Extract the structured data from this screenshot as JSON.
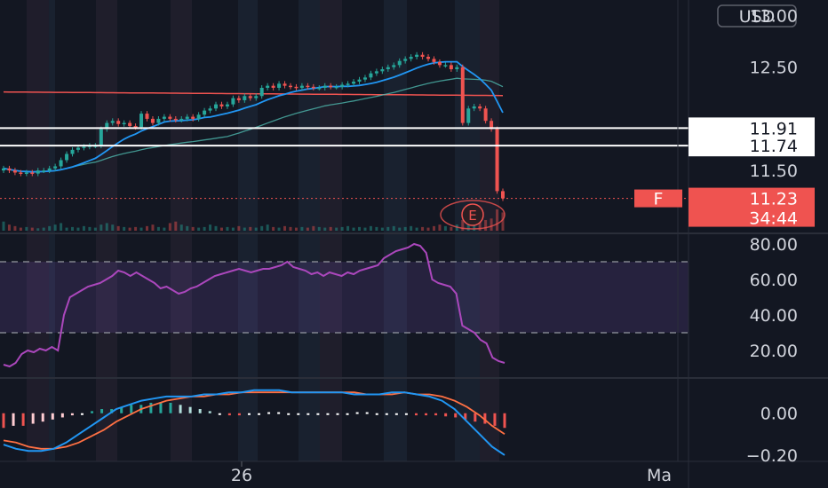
{
  "currency": "USD",
  "chart_data": [
    {
      "type": "candlestick",
      "ylim": [
        10.9,
        13.15
      ],
      "yticks": [
        "13.00",
        "12.50",
        "11.50"
      ],
      "markers": [
        {
          "label": "11.91",
          "value": 11.91,
          "style": "white-box"
        },
        {
          "label": "11.74",
          "value": 11.74,
          "style": "white-box"
        }
      ],
      "last_price": {
        "label": "11.23",
        "value": 11.23,
        "symbol": "F",
        "countdown": "34:44"
      },
      "earnings_marker": "E",
      "close": [
        11.52,
        11.5,
        11.48,
        11.47,
        11.48,
        11.47,
        11.5,
        11.5,
        11.52,
        11.54,
        11.6,
        11.66,
        11.7,
        11.72,
        11.73,
        11.74,
        11.74,
        11.9,
        11.96,
        11.98,
        11.95,
        11.96,
        11.93,
        11.92,
        12.05,
        12.0,
        11.96,
        12.0,
        12.02,
        12.0,
        11.99,
        12.0,
        12.02,
        12.0,
        12.04,
        12.08,
        12.1,
        12.14,
        12.12,
        12.14,
        12.2,
        12.18,
        12.22,
        12.2,
        12.22,
        12.3,
        12.32,
        12.3,
        12.34,
        12.32,
        12.31,
        12.3,
        12.32,
        12.31,
        12.3,
        12.3,
        12.32,
        12.31,
        12.31,
        12.33,
        12.34,
        12.36,
        12.38,
        12.4,
        12.44,
        12.46,
        12.48,
        12.5,
        12.52,
        12.56,
        12.58,
        12.6,
        12.62,
        12.6,
        12.58,
        12.55,
        12.52,
        12.52,
        12.48,
        12.5,
        11.96,
        12.1,
        12.12,
        12.1,
        11.98,
        11.9,
        11.3,
        11.23
      ],
      "volume": [
        0.3,
        0.2,
        0.15,
        0.1,
        0.12,
        0.1,
        0.08,
        0.1,
        0.15,
        0.2,
        0.25,
        0.1,
        0.12,
        0.1,
        0.15,
        0.12,
        0.1,
        0.2,
        0.25,
        0.2,
        0.15,
        0.12,
        0.1,
        0.12,
        0.1,
        0.15,
        0.2,
        0.12,
        0.1,
        0.25,
        0.3,
        0.2,
        0.15,
        0.12,
        0.1,
        0.12,
        0.2,
        0.15,
        0.1,
        0.12,
        0.1,
        0.15,
        0.1,
        0.12,
        0.1,
        0.15,
        0.2,
        0.12,
        0.1,
        0.15,
        0.12,
        0.1,
        0.12,
        0.1,
        0.15,
        0.12,
        0.1,
        0.12,
        0.1,
        0.12,
        0.15,
        0.1,
        0.12,
        0.1,
        0.15,
        0.12,
        0.1,
        0.12,
        0.15,
        0.1,
        0.12,
        0.15,
        0.1,
        0.12,
        0.1,
        0.15,
        0.2,
        0.15,
        0.12,
        0.2,
        0.35,
        0.3,
        0.25,
        0.3,
        0.35,
        0.4,
        0.7,
        0.6
      ]
    },
    {
      "type": "line",
      "name": "RSI",
      "ylim": [
        5,
        85
      ],
      "yticks": [
        "80.00",
        "60.00",
        "40.00",
        "20.00"
      ],
      "band": [
        30,
        70
      ],
      "values": [
        12,
        11,
        13,
        18,
        20,
        19,
        21,
        20,
        22,
        20,
        40,
        50,
        52,
        54,
        56,
        57,
        58,
        60,
        62,
        65,
        64,
        62,
        64,
        62,
        60,
        58,
        55,
        56,
        54,
        52,
        53,
        55,
        56,
        58,
        60,
        62,
        63,
        64,
        65,
        66,
        65,
        64,
        65,
        66,
        66,
        67,
        68,
        70,
        67,
        66,
        65,
        63,
        64,
        62,
        64,
        63,
        62,
        64,
        63,
        65,
        66,
        67,
        68,
        72,
        74,
        76,
        77,
        78,
        80,
        79,
        75,
        60,
        58,
        57,
        56,
        52,
        34,
        32,
        30,
        26,
        24,
        16,
        14,
        13
      ]
    },
    {
      "type": "macd",
      "ylim": [
        -0.23,
        0.16
      ],
      "yticks": [
        "0.00",
        "−0.20"
      ],
      "macd": [
        -0.15,
        -0.17,
        -0.18,
        -0.18,
        -0.17,
        -0.14,
        -0.1,
        -0.06,
        -0.02,
        0.02,
        0.04,
        0.06,
        0.07,
        0.08,
        0.08,
        0.08,
        0.09,
        0.09,
        0.1,
        0.1,
        0.11,
        0.11,
        0.11,
        0.1,
        0.1,
        0.1,
        0.1,
        0.1,
        0.09,
        0.09,
        0.09,
        0.1,
        0.1,
        0.09,
        0.08,
        0.06,
        0.02,
        -0.04,
        -0.1,
        -0.16,
        -0.2
      ],
      "signal": [
        -0.13,
        -0.14,
        -0.16,
        -0.17,
        -0.17,
        -0.16,
        -0.14,
        -0.11,
        -0.08,
        -0.04,
        -0.01,
        0.02,
        0.04,
        0.06,
        0.07,
        0.08,
        0.08,
        0.09,
        0.09,
        0.1,
        0.1,
        0.1,
        0.1,
        0.1,
        0.1,
        0.1,
        0.1,
        0.1,
        0.1,
        0.09,
        0.09,
        0.09,
        0.1,
        0.09,
        0.09,
        0.08,
        0.06,
        0.03,
        -0.01,
        -0.06,
        -0.1
      ],
      "histogram": [
        -0.07,
        -0.06,
        -0.06,
        -0.05,
        -0.04,
        -0.03,
        -0.02,
        -0.01,
        0.0,
        0.01,
        0.02,
        0.02,
        0.03,
        0.04,
        0.04,
        0.05,
        0.05,
        0.05,
        0.04,
        0.03,
        0.02,
        0.01,
        0.0,
        -0.01,
        -0.01,
        -0.005,
        0.0,
        0.005,
        0.005,
        0.0,
        -0.005,
        -0.005,
        -0.005,
        0.0,
        0.0,
        0.0,
        0.005,
        0.005,
        0.0,
        0.0,
        0.0,
        -0.005,
        -0.01,
        -0.01,
        -0.01,
        -0.015,
        -0.02,
        -0.03,
        -0.04,
        -0.05,
        -0.06,
        -0.07
      ]
    }
  ],
  "time_axis": {
    "labels": [
      "26",
      "Ma"
    ]
  }
}
